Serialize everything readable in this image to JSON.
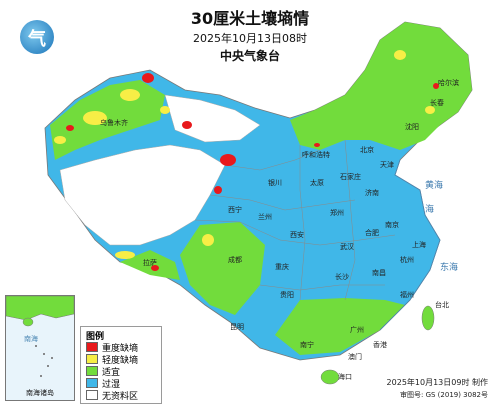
{
  "title": "30厘米土壤墒情",
  "date": "2025年10月13日08时",
  "agency": "中央气象台",
  "legend": {
    "title": "图例",
    "items": [
      {
        "label": "重度缺墒",
        "color": "#e8191c"
      },
      {
        "label": "轻度缺墒",
        "color": "#f7ee46"
      },
      {
        "label": "适宜",
        "color": "#72dc3c"
      },
      {
        "label": "过湿",
        "color": "#40b7e8"
      },
      {
        "label": "无资料区",
        "color": "#ffffff"
      }
    ]
  },
  "footer": {
    "made": "2025年10月13日09时 制作",
    "approval": "审图号: GS (2019) 3082号"
  },
  "inset_caption": "南海诸岛",
  "inset_sea": "南海",
  "seas": [
    "黄海",
    "东海",
    "海"
  ],
  "cities": [
    "乌鲁木齐",
    "拉萨",
    "西宁",
    "兰州",
    "银川",
    "呼和浩特",
    "哈尔滨",
    "长春",
    "沈阳",
    "北京",
    "天津",
    "石家庄",
    "太原",
    "济南",
    "郑州",
    "西安",
    "成都",
    "重庆",
    "武汉",
    "南京",
    "上海",
    "合肥",
    "杭州",
    "长沙",
    "南昌",
    "福州",
    "贵阳",
    "昆明",
    "南宁",
    "广州",
    "香港",
    "澳门",
    "台北",
    "海口"
  ]
}
